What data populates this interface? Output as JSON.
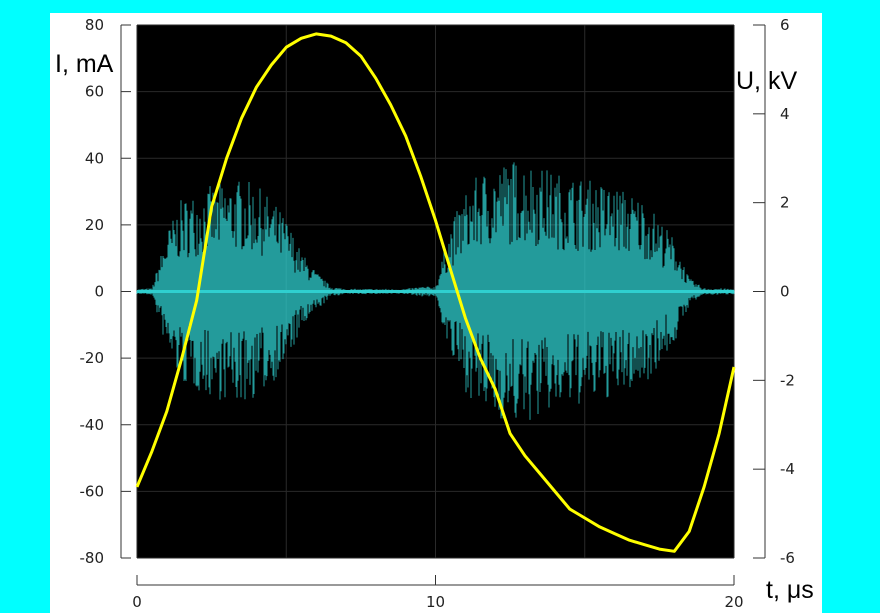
{
  "chart_data": {
    "type": "line",
    "title": "",
    "xlabel": "t, μs",
    "ylabel_left": "I, mA",
    "ylabel_right": "U, kV",
    "xlim": [
      0,
      20
    ],
    "ylim_left": [
      -80,
      80
    ],
    "ylim_right": [
      -6,
      6
    ],
    "xticks": [
      0,
      10,
      20
    ],
    "yticks_left": [
      80,
      60,
      40,
      20,
      0,
      -20,
      -40,
      -60,
      -80
    ],
    "yticks_right": [
      6,
      4,
      2,
      0,
      -2,
      -4,
      -6
    ],
    "grid": true,
    "legend": "none",
    "background": "#000000",
    "series": [
      {
        "axis": "right",
        "color": "#FFFF00",
        "x": [
          0,
          0.5,
          1.0,
          1.5,
          2.0,
          2.5,
          3.0,
          3.5,
          4.0,
          4.5,
          5.0,
          5.5,
          6.0,
          6.5,
          7.0,
          7.5,
          8.0,
          8.5,
          9.0,
          9.5,
          10.0,
          10.5,
          11.0,
          11.5,
          12.0,
          12.5,
          13.0,
          13.5,
          14.0,
          14.5,
          15.0,
          15.5,
          16.0,
          16.5,
          17.0,
          17.5,
          18.0,
          18.5,
          19.0,
          19.5,
          20.0
        ],
        "y": [
          -4.4,
          -3.6,
          -2.7,
          -1.5,
          -0.2,
          1.9,
          3.0,
          3.9,
          4.6,
          5.1,
          5.5,
          5.7,
          5.8,
          5.75,
          5.6,
          5.3,
          4.8,
          4.2,
          3.5,
          2.6,
          1.6,
          0.5,
          -0.6,
          -1.5,
          -2.2,
          -3.2,
          -3.7,
          -4.1,
          -4.5,
          -4.9,
          -5.1,
          -5.3,
          -5.45,
          -5.6,
          -5.7,
          -5.8,
          -5.85,
          -5.4,
          -4.4,
          -3.2,
          -1.7
        ]
      },
      {
        "axis": "left",
        "color": "#2FCFCF",
        "x": [
          0,
          0.5,
          1.0,
          1.5,
          2.0,
          2.5,
          3.0,
          3.5,
          4.0,
          4.5,
          5.0,
          5.5,
          6.0,
          6.5,
          7.0,
          7.5,
          8.0,
          8.5,
          9.0,
          9.5,
          10.0,
          10.5,
          11.0,
          11.5,
          12.0,
          12.5,
          13.0,
          13.5,
          14.0,
          14.5,
          15.0,
          15.5,
          16.0,
          16.5,
          17.0,
          17.5,
          18.0,
          18.5,
          19.0,
          19.5,
          20.0
        ],
        "amplitude": [
          0.8,
          1.0,
          18,
          28,
          30,
          32,
          33,
          34,
          32,
          28,
          22,
          12,
          6,
          1.5,
          0.8,
          0.8,
          0.8,
          0.8,
          0.8,
          1.5,
          1.5,
          20,
          30,
          36,
          38,
          40,
          40,
          38,
          36,
          35,
          34,
          33,
          32,
          30,
          28,
          22,
          16,
          4,
          1.0,
          1.0,
          0.8
        ]
      }
    ]
  }
}
